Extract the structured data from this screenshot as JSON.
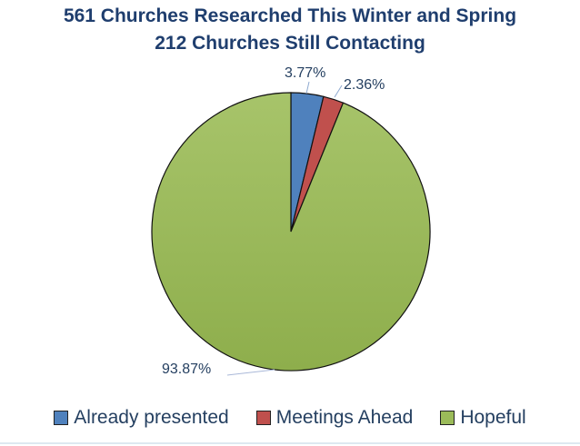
{
  "title": {
    "line1": "561 Churches Researched This Winter and Spring",
    "line2": "212 Churches Still Contacting"
  },
  "labels": {
    "already": "3.77%",
    "meetings": "2.36%",
    "hopeful": "93.87%"
  },
  "legend": [
    {
      "label": "Already presented",
      "color": "#4f81bd"
    },
    {
      "label": "Meetings Ahead",
      "color": "#c0504d"
    },
    {
      "label": "Hopeful",
      "color": "#9bbb59"
    }
  ],
  "chart_data": {
    "type": "pie",
    "title": "561 Churches Researched This Winter and Spring / 212 Churches Still Contacting",
    "categories": [
      "Already presented",
      "Meetings Ahead",
      "Hopeful"
    ],
    "values": [
      3.77,
      2.36,
      93.87
    ],
    "colors": [
      "#4f81bd",
      "#c0504d",
      "#9bbb59"
    ],
    "legend_position": "bottom",
    "data_labels": [
      "3.77%",
      "2.36%",
      "93.87%"
    ]
  }
}
